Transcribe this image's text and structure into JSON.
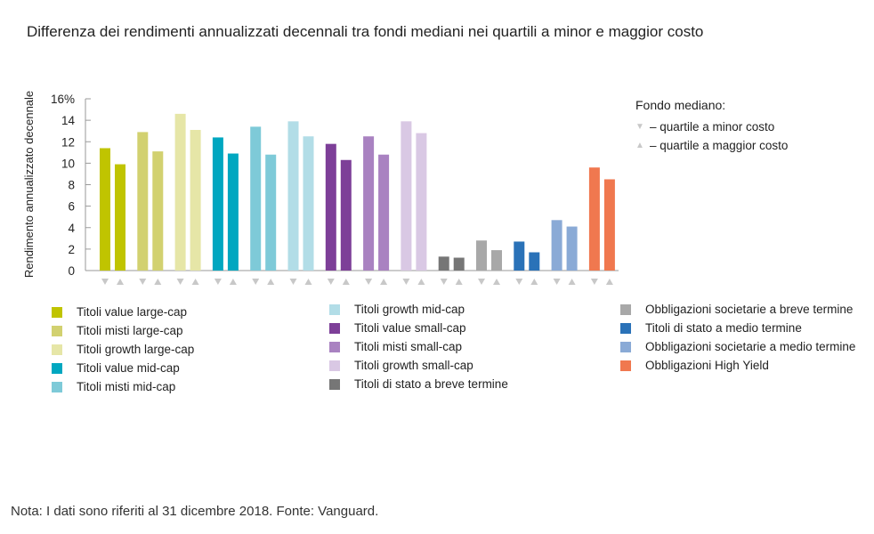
{
  "title": "Differenza dei rendimenti annualizzati decennali tra fondi mediani nei quartili a minor e maggior costo",
  "note": "Nota: I dati sono riferiti al 31 dicembre 2018. Fonte: Vanguard.",
  "fondo": {
    "title": "Fondo mediano:",
    "low_marker": "▼",
    "low_label": "– quartile a minor costo",
    "high_marker": "▲",
    "high_label": "– quartile a maggior costo"
  },
  "chart_data": {
    "type": "bar",
    "ylabel": "Rendimento annualizzato decennale",
    "ylim": [
      0,
      16
    ],
    "yticks": [
      "0",
      "2",
      "4",
      "6",
      "8",
      "10",
      "12",
      "14",
      "16%"
    ],
    "legend_placement": "bottom",
    "categories": [
      "Titoli value large-cap",
      "Titoli misti large-cap",
      "Titoli growth large-cap",
      "Titoli value mid-cap",
      "Titoli misti mid-cap",
      "Titoli growth mid-cap",
      "Titoli value small-cap",
      "Titoli misti small-cap",
      "Titoli growth small-cap",
      "Titoli di stato a breve termine",
      "Obbligazioni societarie a breve termine",
      "Titoli di stato a medio termine",
      "Obbligazioni societarie a medio termine",
      "Obbligazioni High Yield"
    ],
    "colors": [
      "#c0c400",
      "#d2d170",
      "#e6e6a7",
      "#00a7c0",
      "#7ecad8",
      "#b2dde7",
      "#7d3f98",
      "#a982c1",
      "#d9c8e4",
      "#767676",
      "#a8a8a8",
      "#2a72b8",
      "#8aaad6",
      "#f0784f"
    ],
    "series": [
      {
        "name": "quartile a minor costo",
        "values": [
          11.4,
          12.9,
          14.6,
          12.4,
          13.4,
          13.9,
          11.8,
          12.5,
          13.9,
          1.3,
          2.8,
          2.7,
          4.7,
          9.6
        ]
      },
      {
        "name": "quartile a maggior costo",
        "values": [
          9.9,
          11.1,
          13.1,
          10.9,
          10.8,
          12.5,
          10.3,
          10.8,
          12.8,
          1.2,
          1.9,
          1.7,
          4.1,
          8.5
        ]
      }
    ]
  }
}
